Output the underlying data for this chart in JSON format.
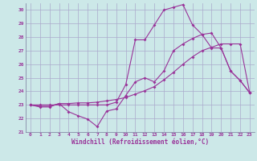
{
  "background_color": "#cce8e8",
  "line_color": "#993399",
  "grid_color": "#aaaacc",
  "xlabel": "Windchill (Refroidissement éolien,°C)",
  "xlim": [
    -0.5,
    23.5
  ],
  "ylim": [
    21,
    30.5
  ],
  "yticks": [
    21,
    22,
    23,
    24,
    25,
    26,
    27,
    28,
    29,
    30
  ],
  "xticks": [
    0,
    1,
    2,
    3,
    4,
    5,
    6,
    7,
    8,
    9,
    10,
    11,
    12,
    13,
    14,
    15,
    16,
    17,
    18,
    19,
    20,
    21,
    22,
    23
  ],
  "series1_x": [
    0,
    1,
    2,
    3,
    4,
    5,
    6,
    7,
    8,
    9,
    10,
    11,
    12,
    13,
    14,
    15,
    16,
    17,
    18,
    19,
    20,
    21,
    22,
    23
  ],
  "series1_y": [
    23.0,
    22.85,
    22.85,
    23.1,
    23.1,
    23.15,
    23.15,
    23.2,
    23.3,
    23.4,
    23.55,
    23.8,
    24.05,
    24.35,
    24.85,
    25.4,
    26.0,
    26.55,
    27.0,
    27.25,
    27.5,
    27.5,
    27.5,
    23.9
  ],
  "series2_x": [
    0,
    1,
    2,
    3,
    4,
    5,
    6,
    7,
    8,
    9,
    10,
    11,
    12,
    13,
    14,
    15,
    16,
    17,
    18,
    19,
    20,
    21,
    22,
    23
  ],
  "series2_y": [
    23.0,
    22.9,
    22.9,
    23.1,
    22.5,
    22.2,
    21.95,
    21.4,
    22.55,
    22.7,
    23.7,
    24.7,
    25.0,
    24.7,
    25.5,
    27.0,
    27.5,
    27.9,
    28.2,
    27.2,
    27.2,
    25.5,
    24.8,
    23.9
  ],
  "series3_x": [
    0,
    1,
    2,
    3,
    4,
    5,
    6,
    7,
    8,
    9,
    10,
    11,
    12,
    13,
    14,
    15,
    16,
    17,
    18,
    19,
    20,
    21,
    22,
    23
  ],
  "series3_y": [
    23.0,
    23.0,
    23.0,
    23.0,
    23.0,
    23.0,
    23.0,
    23.0,
    23.0,
    23.2,
    24.5,
    27.8,
    27.8,
    28.9,
    30.0,
    30.2,
    30.4,
    28.9,
    28.2,
    28.3,
    27.2,
    25.5,
    24.8,
    23.9
  ]
}
